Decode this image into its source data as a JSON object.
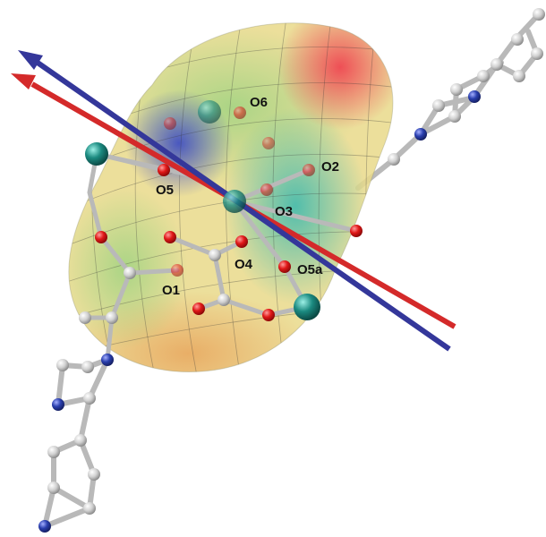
{
  "figure": {
    "labels": [
      "O6",
      "O2",
      "O5",
      "O3",
      "O4",
      "O5a",
      "O1"
    ]
  },
  "colors": {
    "axis_red": "#d42a2a",
    "axis_blue": "#34379a",
    "metal": "#1b8a80",
    "oxygen": "#e01818",
    "nitrogen": "#2a3fae",
    "carbon": "#d6d6d6",
    "bond": "#b9b9b9"
  }
}
